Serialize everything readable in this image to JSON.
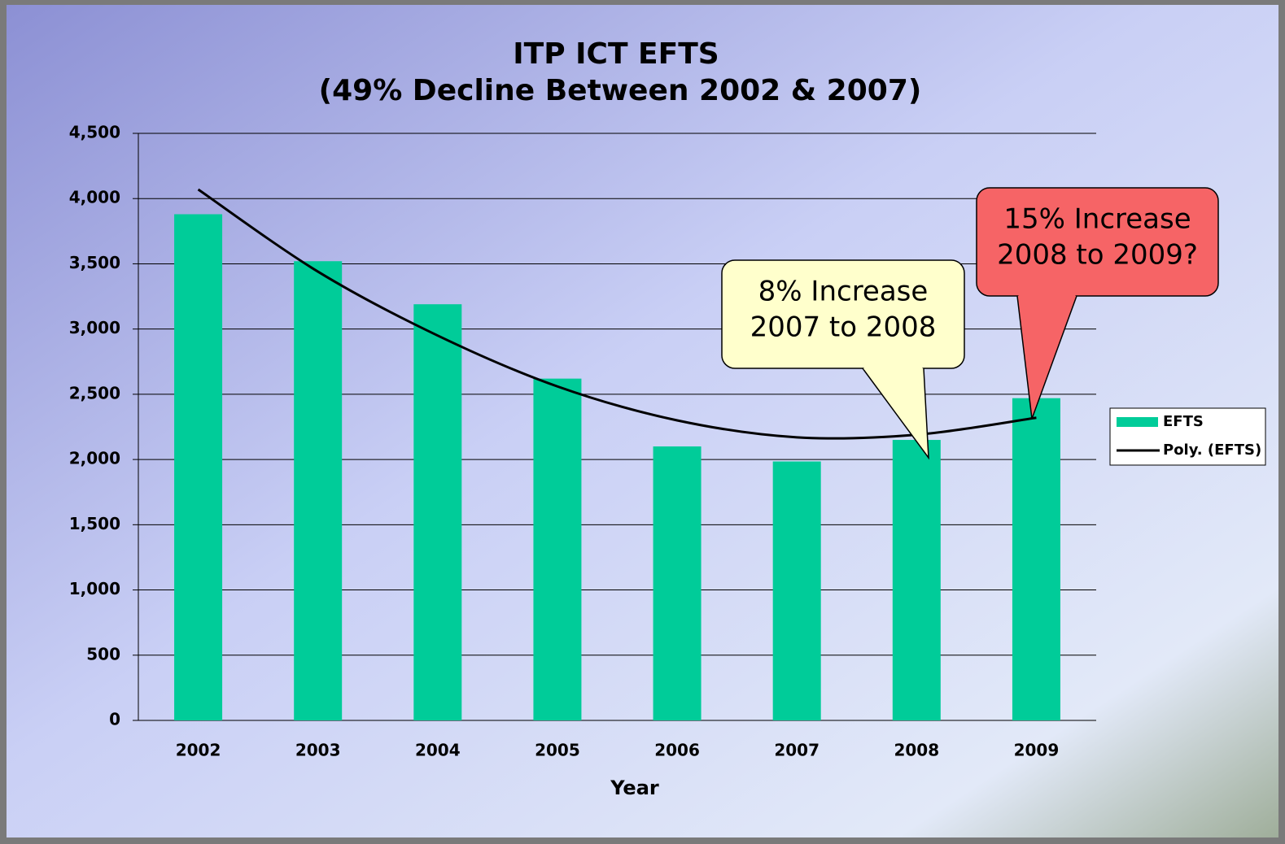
{
  "chart_data": {
    "type": "bar",
    "title": "ITP ICT EFTS",
    "subtitle": "(49% Decline Between 2002 & 2007)",
    "x_label": "Year",
    "categories": [
      "2002",
      "2003",
      "2004",
      "2005",
      "2006",
      "2007",
      "2008",
      "2009"
    ],
    "series": [
      {
        "name": "EFTS",
        "type": "bar",
        "color": "#00cc99",
        "values": [
          3880,
          3520,
          3190,
          2620,
          2100,
          1985,
          2150,
          2470
        ]
      },
      {
        "name": "Poly. (EFTS)",
        "type": "line",
        "color": "#000000",
        "values": [
          4070,
          3440,
          2950,
          2560,
          2300,
          2170,
          2190,
          2320
        ]
      }
    ],
    "ylim": [
      0,
      4500
    ],
    "yticks": [
      0,
      500,
      {
        "value": 1000,
        "label": "1,000"
      },
      {
        "value": 1500,
        "label": "1,500"
      },
      {
        "value": 2000,
        "label": "2,000"
      },
      {
        "value": 2500,
        "label": "2,500"
      },
      {
        "value": 3000,
        "label": "3,000"
      },
      {
        "value": 3500,
        "label": "3,500"
      },
      {
        "value": 4000,
        "label": "4,000"
      },
      {
        "value": 4500,
        "label": "4,500"
      }
    ],
    "grid": true,
    "legend": "right",
    "annotations": [
      {
        "lines": [
          "8% Increase",
          "2007 to 2008"
        ],
        "color": "#ffffcc"
      },
      {
        "lines": [
          "15% Increase",
          "2008 to 2009?"
        ],
        "color": "#f66466"
      }
    ]
  }
}
